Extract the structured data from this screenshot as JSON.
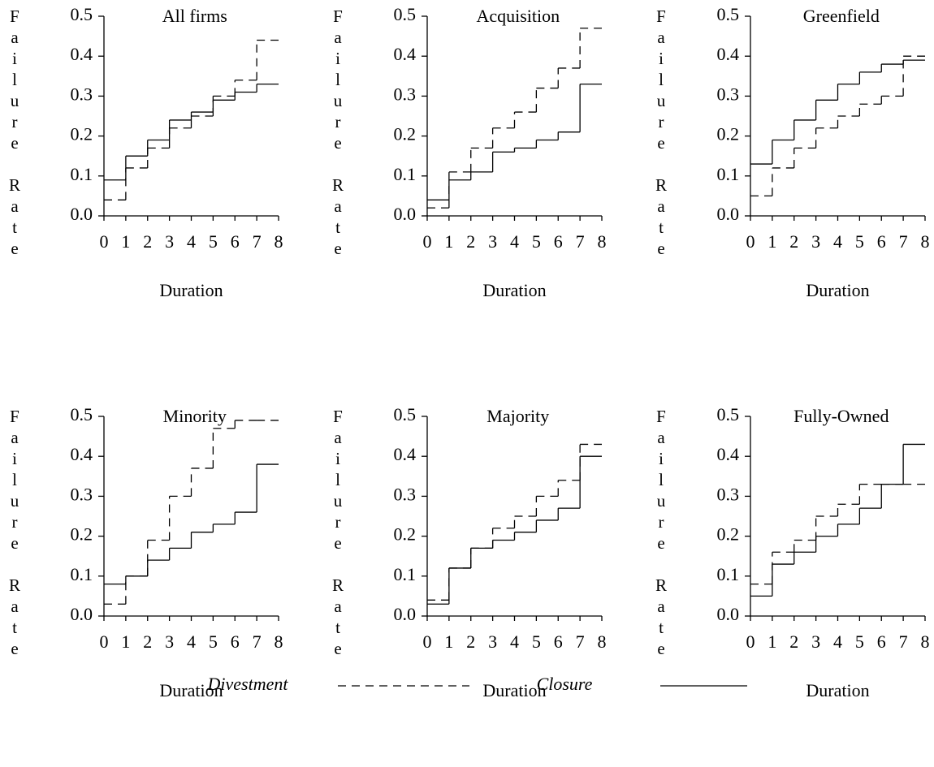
{
  "chart_data": [
    {
      "type": "step",
      "title": "All firms",
      "xlabel": "Duration",
      "ylabel": "Failure Rate",
      "x": [
        0,
        1,
        2,
        3,
        4,
        5,
        6,
        7
      ],
      "xlim": [
        0,
        8
      ],
      "xticks": [
        0,
        1,
        2,
        3,
        4,
        5,
        6,
        7,
        8
      ],
      "ylim": [
        0,
        0.5
      ],
      "yticks": [
        {
          "value": 0,
          "label": "0.0"
        },
        0.1,
        0.2,
        0.3,
        0.4,
        0.5
      ],
      "series": [
        {
          "name": "Divestment",
          "color": "#000000",
          "line_style": "dashed",
          "values": [
            0.04,
            0.12,
            0.17,
            0.22,
            0.25,
            0.3,
            0.34,
            0.44
          ]
        },
        {
          "name": "Closure",
          "color": "#000000",
          "line_style": "solid",
          "values": [
            0.09,
            0.15,
            0.19,
            0.24,
            0.26,
            0.29,
            0.31,
            0.33
          ]
        }
      ]
    },
    {
      "type": "step",
      "title": "Acquisition",
      "xlabel": "Duration",
      "ylabel": "Failure Rate",
      "x": [
        0,
        1,
        2,
        3,
        4,
        5,
        6,
        7
      ],
      "xlim": [
        0,
        8
      ],
      "xticks": [
        0,
        1,
        2,
        3,
        4,
        5,
        6,
        7,
        8
      ],
      "ylim": [
        0,
        0.5
      ],
      "yticks": [
        {
          "value": 0,
          "label": "0.0"
        },
        0.1,
        0.2,
        0.3,
        0.4,
        0.5
      ],
      "series": [
        {
          "name": "Divestment",
          "color": "#000000",
          "line_style": "dashed",
          "values": [
            0.02,
            0.11,
            0.17,
            0.22,
            0.26,
            0.32,
            0.37,
            0.47
          ]
        },
        {
          "name": "Closure",
          "color": "#000000",
          "line_style": "solid",
          "values": [
            0.04,
            0.09,
            0.11,
            0.16,
            0.17,
            0.19,
            0.21,
            0.33
          ]
        }
      ]
    },
    {
      "type": "step",
      "title": "Greenfield",
      "xlabel": "Duration",
      "ylabel": "Failure Rate",
      "x": [
        0,
        1,
        2,
        3,
        4,
        5,
        6,
        7
      ],
      "xlim": [
        0,
        8
      ],
      "xticks": [
        0,
        1,
        2,
        3,
        4,
        5,
        6,
        7,
        8
      ],
      "ylim": [
        0,
        0.5
      ],
      "yticks": [
        {
          "value": 0,
          "label": "0.0"
        },
        0.1,
        0.2,
        0.3,
        0.4,
        0.5
      ],
      "series": [
        {
          "name": "Divestment",
          "color": "#000000",
          "line_style": "dashed",
          "values": [
            0.05,
            0.12,
            0.17,
            0.22,
            0.25,
            0.28,
            0.3,
            0.4
          ]
        },
        {
          "name": "Closure",
          "color": "#000000",
          "line_style": "solid",
          "values": [
            0.13,
            0.19,
            0.24,
            0.29,
            0.33,
            0.36,
            0.38,
            0.39
          ]
        }
      ]
    },
    {
      "type": "step",
      "title": "Minority",
      "xlabel": "Duration",
      "ylabel": "Failure Rate",
      "x": [
        0,
        1,
        2,
        3,
        4,
        5,
        6,
        7
      ],
      "xlim": [
        0,
        8
      ],
      "xticks": [
        0,
        1,
        2,
        3,
        4,
        5,
        6,
        7,
        8
      ],
      "ylim": [
        0,
        0.5
      ],
      "yticks": [
        {
          "value": 0,
          "label": "0.0"
        },
        0.1,
        0.2,
        0.3,
        0.4,
        0.5
      ],
      "series": [
        {
          "name": "Divestment",
          "color": "#000000",
          "line_style": "dashed",
          "values": [
            0.03,
            0.1,
            0.19,
            0.3,
            0.37,
            0.47,
            0.49,
            0.49
          ]
        },
        {
          "name": "Closure",
          "color": "#000000",
          "line_style": "solid",
          "values": [
            0.08,
            0.1,
            0.14,
            0.17,
            0.21,
            0.23,
            0.26,
            0.38
          ]
        }
      ]
    },
    {
      "type": "step",
      "title": "Majority",
      "xlabel": "Duration",
      "ylabel": "Failure Rate",
      "x": [
        0,
        1,
        2,
        3,
        4,
        5,
        6,
        7
      ],
      "xlim": [
        0,
        8
      ],
      "xticks": [
        0,
        1,
        2,
        3,
        4,
        5,
        6,
        7,
        8
      ],
      "ylim": [
        0,
        0.5
      ],
      "yticks": [
        {
          "value": 0,
          "label": "0.0"
        },
        0.1,
        0.2,
        0.3,
        0.4,
        0.5
      ],
      "series": [
        {
          "name": "Divestment",
          "color": "#000000",
          "line_style": "dashed",
          "values": [
            0.04,
            0.12,
            0.17,
            0.22,
            0.25,
            0.3,
            0.34,
            0.43
          ]
        },
        {
          "name": "Closure",
          "color": "#000000",
          "line_style": "solid",
          "values": [
            0.03,
            0.12,
            0.17,
            0.19,
            0.21,
            0.24,
            0.27,
            0.4
          ]
        }
      ]
    },
    {
      "type": "step",
      "title": "Fully-Owned",
      "xlabel": "Duration",
      "ylabel": "Failure Rate",
      "x": [
        0,
        1,
        2,
        3,
        4,
        5,
        6,
        7
      ],
      "xlim": [
        0,
        8
      ],
      "xticks": [
        0,
        1,
        2,
        3,
        4,
        5,
        6,
        7,
        8
      ],
      "ylim": [
        0,
        0.5
      ],
      "yticks": [
        {
          "value": 0,
          "label": "0.0"
        },
        0.1,
        0.2,
        0.3,
        0.4,
        0.5
      ],
      "series": [
        {
          "name": "Divestment",
          "color": "#000000",
          "line_style": "dashed",
          "values": [
            0.08,
            0.16,
            0.19,
            0.25,
            0.28,
            0.33,
            0.33,
            0.33
          ]
        },
        {
          "name": "Closure",
          "color": "#000000",
          "line_style": "solid",
          "values": [
            0.05,
            0.13,
            0.16,
            0.2,
            0.23,
            0.27,
            0.33,
            0.43
          ]
        }
      ]
    }
  ]
}
